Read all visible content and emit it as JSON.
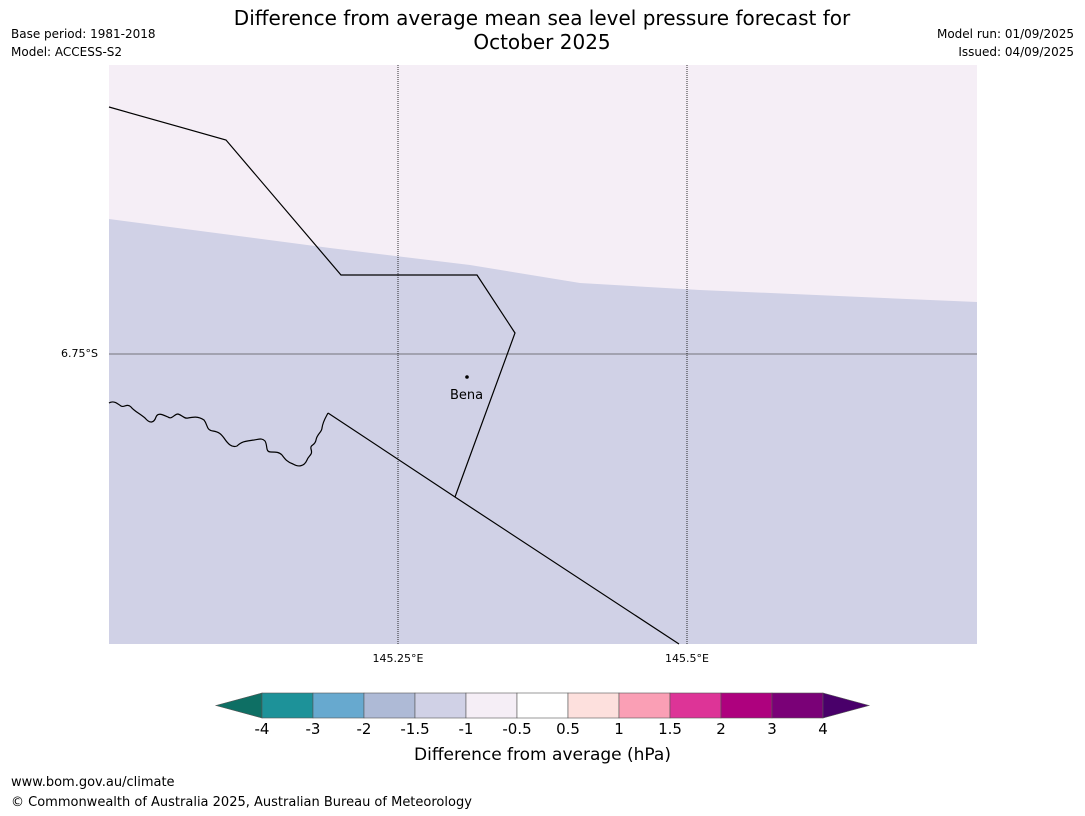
{
  "header": {
    "title_line1": "Difference from average mean sea level pressure forecast for",
    "title_line2": "October 2025",
    "base_period": "Base period: 1981-2018",
    "model": "Model: ACCESS-S2",
    "model_run": "Model run: 01/09/2025",
    "issued": "Issued: 04/09/2025"
  },
  "map": {
    "place": "Bena",
    "lat_labels": [
      "6.75°S"
    ],
    "lon_labels": [
      "145.25°E",
      "145.5°E"
    ],
    "colors": {
      "upper_region": "#f5eef6",
      "lower_region": "#d0d1e6",
      "boundary_line": "#000000",
      "gridline_lat": "#555555"
    }
  },
  "legend": {
    "title": "Difference from average (hPa)",
    "ticks": [
      "-4",
      "-3",
      "-2",
      "-1.5",
      "-1",
      "-0.5",
      "0.5",
      "1",
      "1.5",
      "2",
      "3",
      "4"
    ],
    "colors": [
      "#0e6f64",
      "#1d9299",
      "#67a9cf",
      "#aebad6",
      "#d0d1e6",
      "#f5eef6",
      "#ffffff",
      "#fde0dd",
      "#fa9fb5",
      "#dd3497",
      "#ae017e",
      "#7a0177",
      "#49006a"
    ]
  },
  "footer": {
    "url": "www.bom.gov.au/climate",
    "copyright": "© Commonwealth of Australia 2025, Australian Bureau of Meteorology"
  }
}
